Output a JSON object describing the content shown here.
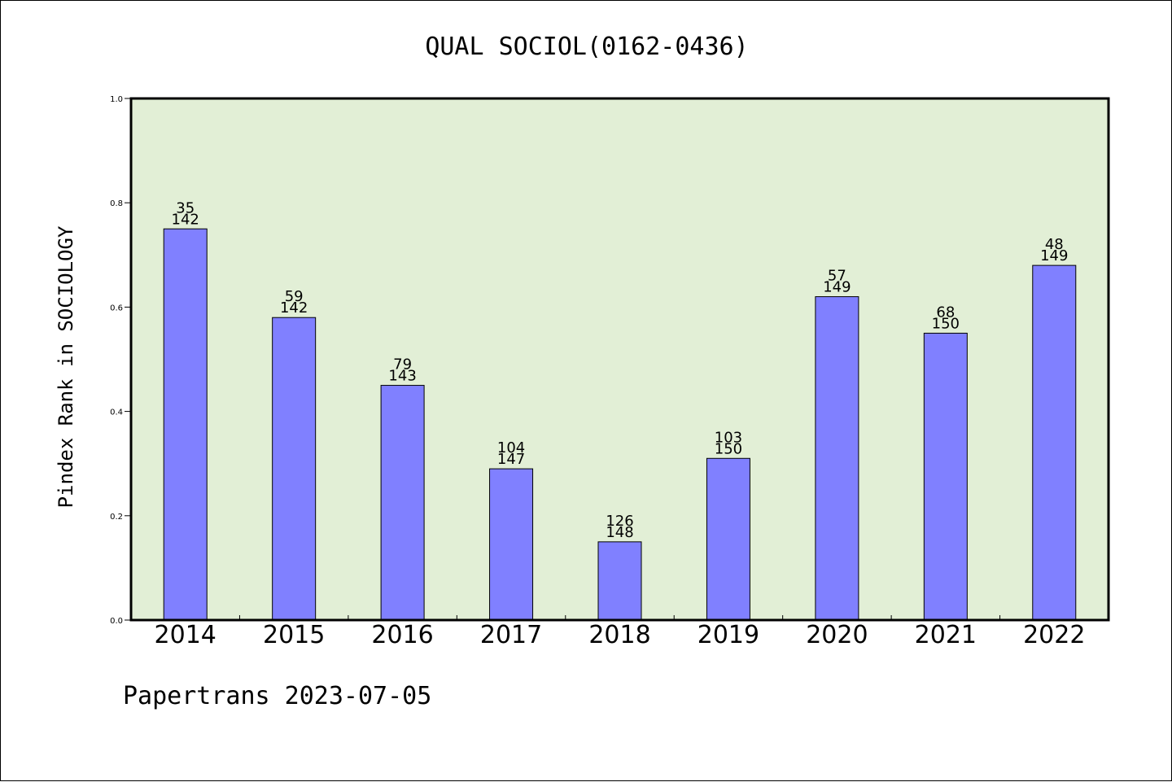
{
  "chart_data": {
    "type": "bar",
    "title": "QUAL SOCIOL(0162-0436)",
    "xlabel": "",
    "ylabel": "Pindex Rank in SOCIOLOGY",
    "ylim": [
      0,
      1.0
    ],
    "yticks": [
      "0.0",
      "0.2",
      "0.4",
      "0.6",
      "0.8",
      "1.0"
    ],
    "ytick_values": [
      0.0,
      0.2,
      0.4,
      0.6,
      0.8,
      1.0
    ],
    "categories": [
      "2014",
      "2015",
      "2016",
      "2017",
      "2018",
      "2019",
      "2020",
      "2021",
      "2022"
    ],
    "values": [
      0.75,
      0.58,
      0.45,
      0.29,
      0.15,
      0.31,
      0.62,
      0.55,
      0.68
    ],
    "bar_labels_top": [
      "35",
      "59",
      "79",
      "104",
      "126",
      "103",
      "57",
      "68",
      "48"
    ],
    "bar_labels_bottom": [
      "142",
      "142",
      "143",
      "147",
      "148",
      "150",
      "149",
      "150",
      "149"
    ],
    "bar_color": "#8080ff",
    "plot_background": "#e2efd6",
    "grid": false,
    "legend": "none"
  },
  "footer": "Papertrans 2023-07-05"
}
